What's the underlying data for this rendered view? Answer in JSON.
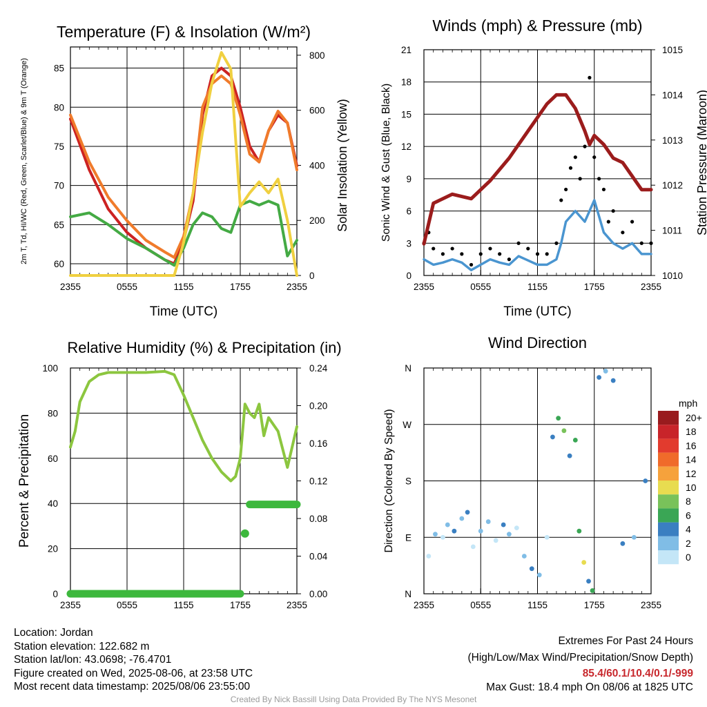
{
  "chart_data": [
    {
      "type": "line",
      "title": "Temperature (F) & Insolation (W/m²)",
      "xlabel": "Time (UTC)",
      "ylabel": "2m T, Td, HI/WC (Red, Green, Scarlet/Blue) & 9m T (Orange)",
      "ylabel_right": "Solar Insolation (Yellow)",
      "xticks": [
        "2355",
        "0555",
        "1155",
        "1755",
        "2355"
      ],
      "ylim": [
        58.5,
        87.7
      ],
      "yticks": [
        60,
        65,
        70,
        75,
        80,
        85
      ],
      "ylim_right": [
        0,
        830
      ],
      "yticks_right": [
        0,
        200,
        400,
        600,
        800
      ],
      "x_hours": [
        0,
        2,
        4,
        6,
        8,
        10,
        11,
        12,
        13,
        14,
        15,
        16,
        17,
        18,
        19,
        20,
        21,
        22,
        23,
        24
      ],
      "series": [
        {
          "color": "#cc2222",
          "axis": "left",
          "values": [
            78.5,
            72,
            67,
            64,
            62,
            60.5,
            60,
            63,
            68,
            79,
            84,
            85,
            84,
            80,
            75,
            73,
            77,
            79,
            78,
            72.5
          ]
        },
        {
          "color": "#f07b2b",
          "axis": "left",
          "values": [
            79,
            73,
            68.5,
            65.5,
            63,
            61.5,
            60.8,
            63.5,
            69,
            80,
            83,
            84,
            83,
            79,
            74,
            73,
            77,
            79.5,
            78,
            72
          ]
        },
        {
          "color": "#44aa44",
          "axis": "left",
          "values": [
            66,
            66.5,
            65,
            63.2,
            62,
            60.5,
            59.8,
            62,
            65,
            66.5,
            66,
            64.5,
            64,
            67.5,
            68,
            67.5,
            68,
            67.5,
            61,
            63
          ]
        },
        {
          "color": "#f0d040",
          "axis": "right",
          "values": [
            0,
            0,
            0,
            0,
            0,
            0,
            0,
            120,
            300,
            520,
            700,
            810,
            750,
            250,
            300,
            340,
            300,
            350,
            200,
            0
          ]
        }
      ]
    },
    {
      "type": "line",
      "title": "Winds (mph) & Pressure (mb)",
      "xlabel": "Time (UTC)",
      "ylabel": "Sonic Wind & Gust (Blue, Black)",
      "ylabel_right": "Station Pressure (Maroon)",
      "xticks": [
        "2355",
        "0555",
        "1155",
        "1755",
        "2355"
      ],
      "ylim": [
        0,
        21
      ],
      "yticks": [
        0,
        3,
        6,
        9,
        12,
        15,
        18,
        21
      ],
      "ylim_right": [
        1010,
        1015
      ],
      "yticks_right": [
        1010,
        1011,
        1012,
        1013,
        1014,
        1015
      ],
      "series": [
        {
          "name": "Pressure",
          "color": "#9b1c1c",
          "axis": "right",
          "x_hours": [
            0,
            1,
            3,
            5,
            7,
            9,
            11,
            13,
            14,
            15,
            16,
            17,
            17.5,
            18,
            19,
            20,
            21,
            22,
            23,
            24
          ],
          "values": [
            1010.7,
            1011.6,
            1011.8,
            1011.7,
            1012.1,
            1012.6,
            1013.2,
            1013.8,
            1014.0,
            1014.0,
            1013.7,
            1013.2,
            1012.9,
            1013.1,
            1012.9,
            1012.6,
            1012.5,
            1012.2,
            1011.9,
            1011.9
          ]
        },
        {
          "name": "Wind",
          "color": "#4a95d0",
          "axis": "left",
          "x_hours": [
            0,
            1,
            2,
            3,
            4,
            5,
            6,
            7,
            8,
            9,
            10,
            11,
            12,
            13,
            14,
            14.5,
            15,
            16,
            17,
            18,
            19,
            20,
            21,
            22,
            23,
            24
          ],
          "values": [
            1.5,
            1,
            1.2,
            1.5,
            1.2,
            0.5,
            1,
            1.5,
            1.2,
            1,
            1.8,
            1.4,
            1,
            1,
            1.5,
            3,
            5,
            6,
            5,
            7,
            4,
            3,
            2.5,
            3,
            2,
            2
          ]
        },
        {
          "name": "Gust",
          "color": "#000000",
          "axis": "left",
          "x_hours": [
            0,
            0.5,
            1,
            2,
            3,
            4,
            5,
            6,
            7,
            8,
            9,
            10,
            11,
            12,
            13,
            14,
            14.5,
            15,
            15.5,
            16,
            16.5,
            17,
            17.5,
            18,
            18.5,
            19,
            19.5,
            20,
            21,
            22,
            23,
            24
          ],
          "values": [
            3,
            4,
            2.5,
            2,
            2.5,
            2,
            1,
            2,
            2.5,
            2,
            1.5,
            3,
            2.5,
            2,
            2,
            3,
            7,
            8,
            10,
            11,
            9,
            12,
            18.4,
            11,
            9,
            8,
            5,
            6,
            4,
            5,
            3,
            3
          ]
        }
      ]
    },
    {
      "type": "line",
      "title": "Relative Humidity (%) & Precipitation (in)",
      "xlabel": "",
      "ylabel": "Percent & Precipitation",
      "xticks": [
        "2355",
        "0555",
        "1155",
        "1755",
        "2355"
      ],
      "ylim": [
        0,
        100
      ],
      "yticks": [
        0,
        20,
        40,
        60,
        80,
        100
      ],
      "ylim_right": [
        0,
        0.24
      ],
      "yticks_right": [
        "0.00",
        "0.04",
        "0.08",
        "0.12",
        "0.16",
        "0.20",
        "0.24"
      ],
      "series": [
        {
          "name": "RH",
          "color": "#8cc63f",
          "axis": "left",
          "x_hours": [
            0,
            0.5,
            1,
            2,
            3,
            4,
            6,
            8,
            10,
            11,
            12,
            13,
            14,
            15,
            16,
            17,
            17.5,
            18,
            18.5,
            19,
            19.5,
            20,
            20.5,
            21,
            22,
            23,
            24
          ],
          "values": [
            65,
            72,
            85,
            94,
            97,
            98,
            98,
            98,
            98.5,
            97,
            88,
            78,
            68,
            60,
            54,
            50,
            52,
            60,
            84,
            80,
            78,
            84,
            70,
            78,
            72,
            56,
            74
          ]
        },
        {
          "name": "Precip",
          "color": "#3db83d",
          "axis": "right",
          "x_hours": [
            0,
            18,
            18.5,
            19,
            24
          ],
          "values": [
            0,
            0,
            0.064,
            0.095,
            0.095
          ]
        }
      ]
    },
    {
      "type": "scatter",
      "title": "Wind Direction",
      "ylabel": "Direction (Colored By Speed)",
      "xticks": [
        "2355",
        "0555",
        "1155",
        "1755",
        "2355"
      ],
      "yticks": [
        "N",
        "E",
        "S",
        "W",
        "N"
      ],
      "legend": {
        "title": "mph",
        "labels": [
          "20+",
          "18",
          "16",
          "14",
          "12",
          "10",
          "8",
          "6",
          "4",
          "2",
          "0"
        ],
        "colors": [
          "#991b1e",
          "#c8242a",
          "#e23b2e",
          "#f06b2a",
          "#f6a23c",
          "#e8dc50",
          "#79c25a",
          "#3aa655",
          "#3a7fc1",
          "#80bde6",
          "#c4e6f7"
        ]
      },
      "points": [
        {
          "x": 0.5,
          "y": 60,
          "c": "#c4e6f7"
        },
        {
          "x": 1.2,
          "y": 95,
          "c": "#80bde6"
        },
        {
          "x": 2.0,
          "y": 90,
          "c": "#c4e6f7"
        },
        {
          "x": 2.5,
          "y": 110,
          "c": "#80bde6"
        },
        {
          "x": 3.2,
          "y": 100,
          "c": "#3a7fc1"
        },
        {
          "x": 4.0,
          "y": 120,
          "c": "#80bde6"
        },
        {
          "x": 4.6,
          "y": 130,
          "c": "#3a7fc1"
        },
        {
          "x": 5.2,
          "y": 75,
          "c": "#c4e6f7"
        },
        {
          "x": 6.0,
          "y": 100,
          "c": "#80bde6"
        },
        {
          "x": 6.8,
          "y": 115,
          "c": "#80bde6"
        },
        {
          "x": 7.6,
          "y": 85,
          "c": "#c4e6f7"
        },
        {
          "x": 8.4,
          "y": 110,
          "c": "#3a7fc1"
        },
        {
          "x": 9.0,
          "y": 95,
          "c": "#80bde6"
        },
        {
          "x": 9.8,
          "y": 105,
          "c": "#c4e6f7"
        },
        {
          "x": 10.6,
          "y": 60,
          "c": "#80bde6"
        },
        {
          "x": 11.4,
          "y": 40,
          "c": "#3a7fc1"
        },
        {
          "x": 12.2,
          "y": 30,
          "c": "#80bde6"
        },
        {
          "x": 13.0,
          "y": 90,
          "c": "#c4e6f7"
        },
        {
          "x": 13.6,
          "y": 250,
          "c": "#3a7fc1"
        },
        {
          "x": 14.2,
          "y": 280,
          "c": "#3aa655"
        },
        {
          "x": 14.8,
          "y": 260,
          "c": "#79c25a"
        },
        {
          "x": 15.4,
          "y": 220,
          "c": "#3a7fc1"
        },
        {
          "x": 16.0,
          "y": 245,
          "c": "#3aa655"
        },
        {
          "x": 16.4,
          "y": 100,
          "c": "#3aa655"
        },
        {
          "x": 16.9,
          "y": 50,
          "c": "#e8dc50"
        },
        {
          "x": 17.4,
          "y": 20,
          "c": "#3a7fc1"
        },
        {
          "x": 17.8,
          "y": 5,
          "c": "#3aa655"
        },
        {
          "x": 18.5,
          "y": 345,
          "c": "#3a7fc1"
        },
        {
          "x": 19.2,
          "y": 355,
          "c": "#80bde6"
        },
        {
          "x": 20.0,
          "y": 340,
          "c": "#3a7fc1"
        },
        {
          "x": 21.0,
          "y": 80,
          "c": "#3a7fc1"
        },
        {
          "x": 22.2,
          "y": 90,
          "c": "#80bde6"
        },
        {
          "x": 23.4,
          "y": 180,
          "c": "#3a7fc1"
        }
      ]
    }
  ],
  "info_left": [
    "Location: Jordan",
    "Station elevation: 122.682 m",
    "Station lat/lon: 43.0698; -76.4701",
    "Figure created on Wed, 2025-08-06, at 23:58 UTC",
    "Most recent data timestamp: 2025/08/06 23:55:00"
  ],
  "info_right": {
    "line1": "Extremes For Past 24 Hours",
    "line2": "(High/Low/Max Wind/Precipitation/Snow Depth)",
    "extremes": "85.4/60.1/10.4/0.1/-999",
    "gust": "Max Gust: 18.4 mph On 08/06 at 1825 UTC"
  },
  "credit": "Created By Nick Bassill Using Data Provided By The NYS Mesonet"
}
